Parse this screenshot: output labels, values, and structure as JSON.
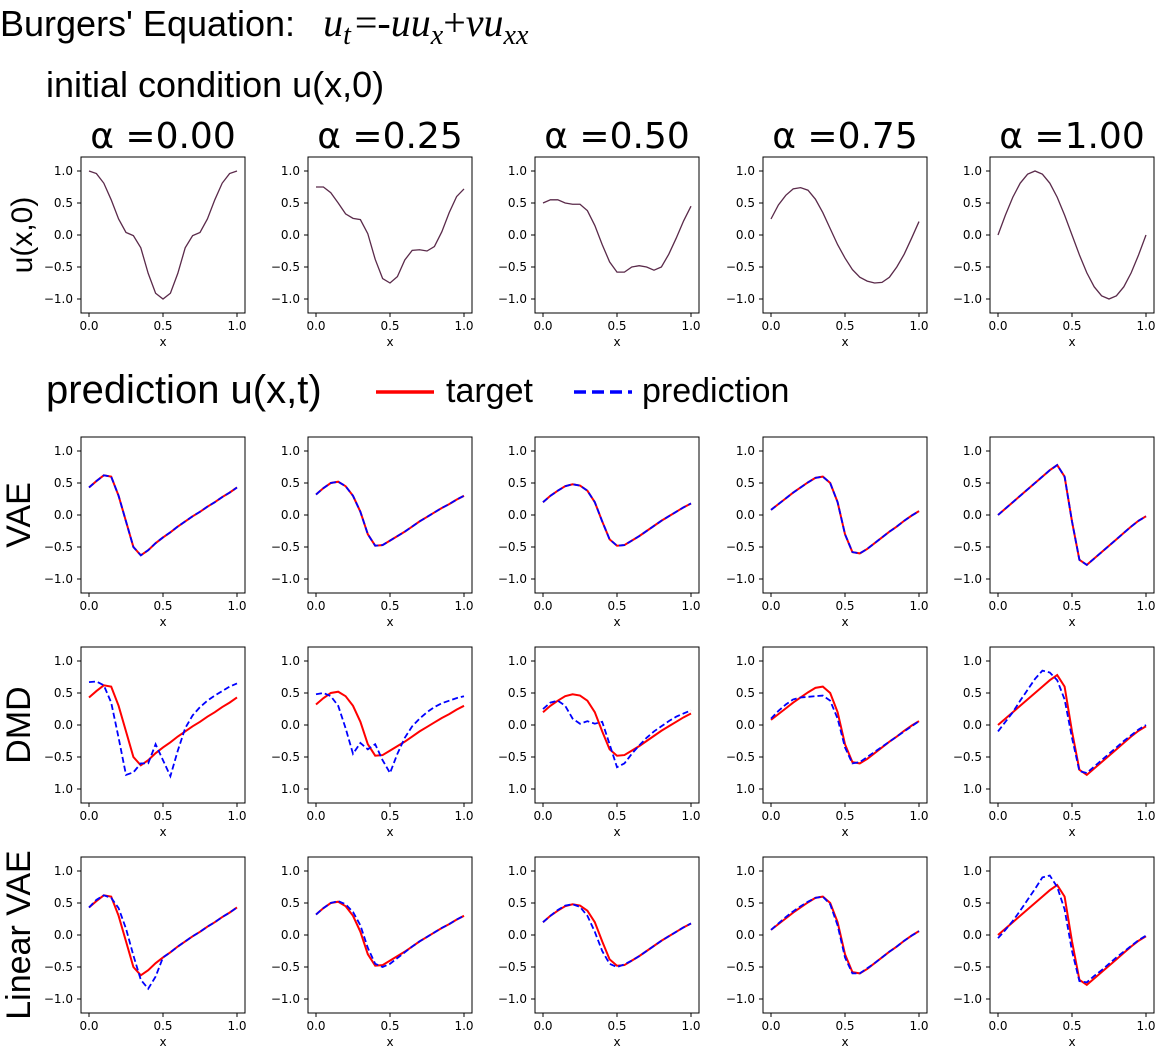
{
  "header": {
    "prefix": "Burgers' Equation:",
    "equation": {
      "lhs_base": "u",
      "lhs_sub": "t",
      "eq": "=",
      "term1_sign": "-",
      "term1_a": "u",
      "term1_b": "u",
      "term1_b_sub": "x",
      "plus": "+",
      "term2_coef": "ν",
      "term2_base": "u",
      "term2_sub": "xx"
    },
    "initial_title": "initial condition u(x,0)",
    "prediction_title": "prediction u(x,t)"
  },
  "legend": {
    "position": "top, right of prediction title",
    "entries": [
      {
        "label": "target",
        "color": "#ff0000",
        "style": "solid"
      },
      {
        "label": "prediction",
        "color": "#0000ff",
        "style": "dashed"
      }
    ]
  },
  "colors": {
    "target": "#ff0000",
    "prediction": "#0000ff",
    "initial": "#5a2a4a"
  },
  "chart_data": {
    "type": "line",
    "alpha_labels": [
      "α =0.00",
      "α =0.25",
      "α =0.50",
      "α =0.75",
      "α =1.00"
    ],
    "row_labels": [
      "u(x,0)",
      "VAE",
      "DMD",
      "Linear VAE"
    ],
    "xlabel": "x",
    "xlim": [
      0,
      1
    ],
    "ylim": [
      -1.0,
      1.0
    ],
    "xticks": [
      "0.0",
      "0.5",
      "1.0"
    ],
    "yticks_standard": [
      "1.0",
      "0.5",
      "0.0",
      "−0.5",
      "−1.0"
    ],
    "yticks_dmd": [
      "1.0",
      "0.5",
      "0.0",
      "−0.5",
      "1.0"
    ],
    "x": [
      0,
      0.05,
      0.1,
      0.15,
      0.2,
      0.25,
      0.3,
      0.35,
      0.4,
      0.45,
      0.5,
      0.55,
      0.6,
      0.65,
      0.7,
      0.75,
      0.8,
      0.85,
      0.9,
      0.95,
      1.0
    ],
    "initial_condition": [
      {
        "alpha": 0.0,
        "values": [
          1.0,
          0.96,
          0.81,
          0.55,
          0.25,
          0.04,
          -0.01,
          -0.2,
          -0.6,
          -0.91,
          -1.0,
          -0.91,
          -0.6,
          -0.2,
          -0.01,
          0.04,
          0.25,
          0.55,
          0.81,
          0.96,
          1.0
        ]
      },
      {
        "alpha": 0.25,
        "values": [
          0.75,
          0.75,
          0.66,
          0.5,
          0.33,
          0.26,
          0.24,
          0.02,
          -0.38,
          -0.68,
          -0.75,
          -0.65,
          -0.39,
          -0.24,
          -0.23,
          -0.25,
          -0.18,
          0.05,
          0.35,
          0.6,
          0.72
        ]
      },
      {
        "alpha": 0.5,
        "values": [
          0.5,
          0.55,
          0.55,
          0.5,
          0.48,
          0.48,
          0.38,
          0.15,
          -0.15,
          -0.42,
          -0.58,
          -0.58,
          -0.5,
          -0.48,
          -0.5,
          -0.55,
          -0.5,
          -0.3,
          -0.05,
          0.22,
          0.45
        ]
      },
      {
        "alpha": 0.75,
        "values": [
          0.25,
          0.47,
          0.62,
          0.72,
          0.74,
          0.7,
          0.56,
          0.35,
          0.1,
          -0.15,
          -0.36,
          -0.54,
          -0.66,
          -0.72,
          -0.75,
          -0.74,
          -0.66,
          -0.5,
          -0.3,
          -0.05,
          0.21
        ]
      },
      {
        "alpha": 1.0,
        "values": [
          0.0,
          0.31,
          0.59,
          0.81,
          0.95,
          1.0,
          0.95,
          0.81,
          0.59,
          0.31,
          0.0,
          -0.31,
          -0.59,
          -0.81,
          -0.95,
          -1.0,
          -0.95,
          -0.81,
          -0.59,
          -0.31,
          0.0
        ]
      }
    ],
    "rows": [
      {
        "method": "VAE",
        "panels": [
          {
            "target": [
              0.43,
              0.53,
              0.62,
              0.6,
              0.3,
              -0.1,
              -0.5,
              -0.63,
              -0.55,
              -0.44,
              -0.35,
              -0.27,
              -0.18,
              -0.1,
              -0.02,
              0.05,
              0.13,
              0.2,
              0.28,
              0.35,
              0.43
            ],
            "prediction": [
              0.43,
              0.53,
              0.62,
              0.6,
              0.3,
              -0.1,
              -0.5,
              -0.63,
              -0.55,
              -0.44,
              -0.35,
              -0.27,
              -0.18,
              -0.1,
              -0.02,
              0.05,
              0.13,
              0.2,
              0.28,
              0.35,
              0.43
            ]
          },
          {
            "target": [
              0.32,
              0.42,
              0.5,
              0.52,
              0.45,
              0.3,
              0.05,
              -0.3,
              -0.48,
              -0.47,
              -0.4,
              -0.33,
              -0.26,
              -0.18,
              -0.1,
              -0.03,
              0.04,
              0.11,
              0.17,
              0.24,
              0.3
            ],
            "prediction": [
              0.32,
              0.42,
              0.5,
              0.52,
              0.45,
              0.3,
              0.05,
              -0.3,
              -0.48,
              -0.47,
              -0.4,
              -0.33,
              -0.26,
              -0.18,
              -0.1,
              -0.03,
              0.04,
              0.11,
              0.17,
              0.24,
              0.3
            ]
          },
          {
            "target": [
              0.2,
              0.3,
              0.38,
              0.45,
              0.48,
              0.46,
              0.38,
              0.2,
              -0.1,
              -0.38,
              -0.48,
              -0.47,
              -0.4,
              -0.33,
              -0.25,
              -0.17,
              -0.09,
              -0.02,
              0.05,
              0.12,
              0.18
            ],
            "prediction": [
              0.2,
              0.3,
              0.38,
              0.45,
              0.48,
              0.46,
              0.38,
              0.2,
              -0.1,
              -0.38,
              -0.48,
              -0.47,
              -0.4,
              -0.33,
              -0.25,
              -0.17,
              -0.09,
              -0.02,
              0.05,
              0.12,
              0.18
            ]
          },
          {
            "target": [
              0.08,
              0.17,
              0.26,
              0.35,
              0.43,
              0.51,
              0.58,
              0.6,
              0.5,
              0.2,
              -0.3,
              -0.58,
              -0.6,
              -0.53,
              -0.44,
              -0.35,
              -0.26,
              -0.18,
              -0.09,
              -0.01,
              0.06
            ],
            "prediction": [
              0.08,
              0.17,
              0.26,
              0.35,
              0.43,
              0.51,
              0.58,
              0.6,
              0.5,
              0.2,
              -0.3,
              -0.58,
              -0.6,
              -0.53,
              -0.44,
              -0.35,
              -0.26,
              -0.18,
              -0.09,
              -0.01,
              0.06
            ]
          },
          {
            "target": [
              0.0,
              0.1,
              0.2,
              0.3,
              0.4,
              0.5,
              0.6,
              0.7,
              0.78,
              0.6,
              -0.1,
              -0.7,
              -0.78,
              -0.68,
              -0.58,
              -0.48,
              -0.38,
              -0.28,
              -0.18,
              -0.09,
              -0.02
            ],
            "prediction": [
              0.0,
              0.1,
              0.2,
              0.3,
              0.4,
              0.5,
              0.6,
              0.7,
              0.78,
              0.6,
              -0.1,
              -0.7,
              -0.78,
              -0.68,
              -0.58,
              -0.48,
              -0.38,
              -0.28,
              -0.18,
              -0.09,
              -0.02
            ]
          }
        ]
      },
      {
        "method": "DMD",
        "panels": [
          {
            "target": [
              0.43,
              0.53,
              0.62,
              0.6,
              0.3,
              -0.1,
              -0.5,
              -0.63,
              -0.55,
              -0.44,
              -0.35,
              -0.27,
              -0.18,
              -0.1,
              -0.02,
              0.05,
              0.13,
              0.2,
              0.28,
              0.35,
              0.43
            ],
            "prediction": [
              0.67,
              0.68,
              0.62,
              0.35,
              -0.2,
              -0.78,
              -0.74,
              -0.6,
              -0.6,
              -0.3,
              -0.55,
              -0.8,
              -0.4,
              -0.05,
              0.15,
              0.28,
              0.38,
              0.46,
              0.53,
              0.6,
              0.65
            ]
          },
          {
            "target": [
              0.32,
              0.42,
              0.5,
              0.52,
              0.45,
              0.3,
              0.05,
              -0.3,
              -0.48,
              -0.47,
              -0.4,
              -0.33,
              -0.26,
              -0.18,
              -0.1,
              -0.03,
              0.04,
              0.11,
              0.17,
              0.24,
              0.3
            ],
            "prediction": [
              0.48,
              0.5,
              0.45,
              0.3,
              -0.05,
              -0.45,
              -0.28,
              -0.38,
              -0.3,
              -0.55,
              -0.75,
              -0.45,
              -0.2,
              -0.02,
              0.1,
              0.2,
              0.28,
              0.34,
              0.38,
              0.42,
              0.45
            ]
          },
          {
            "target": [
              0.2,
              0.3,
              0.38,
              0.45,
              0.48,
              0.46,
              0.38,
              0.2,
              -0.1,
              -0.38,
              -0.48,
              -0.47,
              -0.4,
              -0.33,
              -0.25,
              -0.17,
              -0.09,
              -0.02,
              0.05,
              0.12,
              0.18
            ],
            "prediction": [
              0.25,
              0.35,
              0.38,
              0.3,
              0.1,
              0.02,
              0.06,
              0.02,
              0.05,
              -0.3,
              -0.66,
              -0.6,
              -0.45,
              -0.32,
              -0.2,
              -0.1,
              -0.02,
              0.06,
              0.13,
              0.18,
              0.23
            ]
          },
          {
            "target": [
              0.08,
              0.17,
              0.26,
              0.35,
              0.43,
              0.51,
              0.58,
              0.6,
              0.5,
              0.2,
              -0.3,
              -0.58,
              -0.6,
              -0.53,
              -0.44,
              -0.35,
              -0.26,
              -0.18,
              -0.09,
              -0.01,
              0.06
            ],
            "prediction": [
              0.1,
              0.22,
              0.32,
              0.4,
              0.43,
              0.44,
              0.45,
              0.46,
              0.38,
              0.1,
              -0.35,
              -0.6,
              -0.58,
              -0.5,
              -0.42,
              -0.34,
              -0.26,
              -0.18,
              -0.1,
              -0.02,
              0.06
            ]
          },
          {
            "target": [
              0.0,
              0.1,
              0.2,
              0.3,
              0.4,
              0.5,
              0.6,
              0.7,
              0.78,
              0.6,
              -0.1,
              -0.7,
              -0.78,
              -0.68,
              -0.58,
              -0.48,
              -0.38,
              -0.28,
              -0.18,
              -0.09,
              -0.02
            ],
            "prediction": [
              -0.1,
              0.05,
              0.2,
              0.38,
              0.55,
              0.72,
              0.85,
              0.82,
              0.7,
              0.4,
              -0.2,
              -0.72,
              -0.75,
              -0.65,
              -0.55,
              -0.45,
              -0.35,
              -0.25,
              -0.16,
              -0.07,
              0.0
            ]
          }
        ]
      },
      {
        "method": "Linear VAE",
        "panels": [
          {
            "target": [
              0.43,
              0.53,
              0.62,
              0.6,
              0.3,
              -0.1,
              -0.5,
              -0.63,
              -0.55,
              -0.44,
              -0.35,
              -0.27,
              -0.18,
              -0.1,
              -0.02,
              0.05,
              0.13,
              0.2,
              0.28,
              0.35,
              0.43
            ],
            "prediction": [
              0.43,
              0.55,
              0.62,
              0.58,
              0.42,
              0.1,
              -0.32,
              -0.7,
              -0.84,
              -0.65,
              -0.35,
              -0.27,
              -0.18,
              -0.1,
              -0.02,
              0.05,
              0.13,
              0.2,
              0.28,
              0.35,
              0.43
            ]
          },
          {
            "target": [
              0.32,
              0.42,
              0.5,
              0.52,
              0.45,
              0.3,
              0.05,
              -0.3,
              -0.48,
              -0.47,
              -0.4,
              -0.33,
              -0.26,
              -0.18,
              -0.1,
              -0.03,
              0.04,
              0.11,
              0.17,
              0.24,
              0.3
            ],
            "prediction": [
              0.32,
              0.42,
              0.5,
              0.53,
              0.48,
              0.36,
              0.15,
              -0.2,
              -0.45,
              -0.5,
              -0.45,
              -0.36,
              -0.27,
              -0.18,
              -0.1,
              -0.03,
              0.04,
              0.11,
              0.17,
              0.24,
              0.3
            ]
          },
          {
            "target": [
              0.2,
              0.3,
              0.38,
              0.45,
              0.48,
              0.46,
              0.38,
              0.2,
              -0.1,
              -0.38,
              -0.48,
              -0.47,
              -0.4,
              -0.33,
              -0.25,
              -0.17,
              -0.09,
              -0.02,
              0.05,
              0.12,
              0.18
            ],
            "prediction": [
              0.2,
              0.3,
              0.39,
              0.46,
              0.48,
              0.44,
              0.3,
              0.05,
              -0.25,
              -0.45,
              -0.5,
              -0.46,
              -0.4,
              -0.33,
              -0.25,
              -0.17,
              -0.09,
              -0.02,
              0.05,
              0.12,
              0.18
            ]
          },
          {
            "target": [
              0.08,
              0.17,
              0.26,
              0.35,
              0.43,
              0.51,
              0.58,
              0.6,
              0.5,
              0.2,
              -0.3,
              -0.58,
              -0.6,
              -0.53,
              -0.44,
              -0.35,
              -0.26,
              -0.18,
              -0.09,
              -0.01,
              0.06
            ],
            "prediction": [
              0.08,
              0.18,
              0.28,
              0.37,
              0.45,
              0.52,
              0.58,
              0.6,
              0.48,
              0.15,
              -0.35,
              -0.6,
              -0.6,
              -0.52,
              -0.44,
              -0.35,
              -0.26,
              -0.18,
              -0.09,
              -0.01,
              0.06
            ]
          },
          {
            "target": [
              0.0,
              0.1,
              0.2,
              0.3,
              0.4,
              0.5,
              0.6,
              0.7,
              0.78,
              0.6,
              -0.1,
              -0.7,
              -0.78,
              -0.68,
              -0.58,
              -0.48,
              -0.38,
              -0.28,
              -0.18,
              -0.09,
              -0.02
            ],
            "prediction": [
              -0.05,
              0.08,
              0.22,
              0.38,
              0.55,
              0.72,
              0.9,
              0.93,
              0.75,
              0.4,
              -0.25,
              -0.72,
              -0.74,
              -0.64,
              -0.55,
              -0.45,
              -0.35,
              -0.26,
              -0.17,
              -0.08,
              -0.01
            ]
          }
        ]
      }
    ],
    "grid": false
  }
}
